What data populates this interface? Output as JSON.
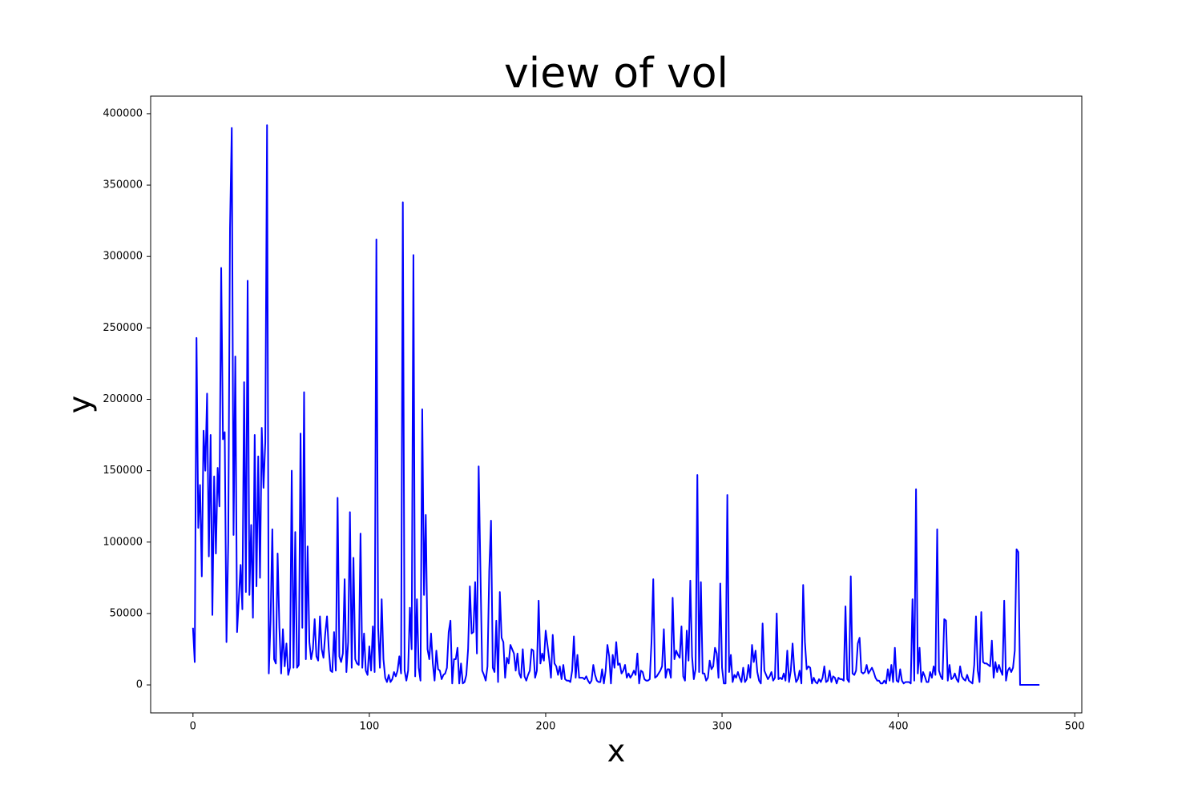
{
  "chart_data": {
    "type": "line",
    "title": "view of vol",
    "x_label": "x",
    "y_label": "y",
    "color": "#0000ff",
    "x": [
      0,
      1,
      2,
      3,
      4,
      5,
      6,
      7,
      8,
      9,
      10,
      11,
      12,
      13,
      14,
      15,
      16,
      17,
      18,
      19,
      20,
      21,
      22,
      23,
      24,
      25,
      26,
      27,
      28,
      29,
      30,
      31,
      32,
      33,
      34,
      35,
      36,
      37,
      38,
      39,
      40,
      41,
      42,
      43,
      44,
      45,
      46,
      47,
      48,
      49,
      50,
      51,
      52,
      53,
      54,
      55,
      56,
      57,
      58,
      59,
      60,
      61,
      62,
      63,
      64,
      65,
      66,
      67,
      68,
      69,
      70,
      71,
      72,
      73,
      74,
      75,
      76,
      77,
      78,
      79,
      80,
      81,
      82,
      83,
      84,
      85,
      86,
      87,
      88,
      89,
      90,
      91,
      92,
      93,
      94,
      95,
      96,
      97,
      98,
      99,
      100,
      101,
      102,
      103,
      104,
      105,
      106,
      107,
      108,
      109,
      110,
      111,
      112,
      113,
      114,
      115,
      116,
      117,
      118,
      119,
      120,
      121,
      122,
      123,
      124,
      125,
      126,
      127,
      128,
      129,
      130,
      131,
      132,
      133,
      134,
      135,
      136,
      137,
      138,
      139,
      140,
      141,
      142,
      143,
      144,
      145,
      146,
      147,
      148,
      149,
      150,
      151,
      152,
      153,
      154,
      155,
      156,
      157,
      158,
      159,
      160,
      161,
      162,
      163,
      164,
      165,
      166,
      167,
      168,
      169,
      170,
      171,
      172,
      173,
      174,
      175,
      176,
      177,
      178,
      179,
      180,
      181,
      182,
      183,
      184,
      185,
      186,
      187,
      188,
      189,
      190,
      191,
      192,
      193,
      194,
      195,
      196,
      197,
      198,
      199,
      200,
      201,
      202,
      203,
      204,
      205,
      206,
      207,
      208,
      209,
      210,
      211,
      212,
      213,
      214,
      215,
      216,
      217,
      218,
      219,
      220,
      221,
      222,
      223,
      224,
      225,
      226,
      227,
      228,
      229,
      230,
      231,
      232,
      233,
      234,
      235,
      236,
      237,
      238,
      239,
      240,
      241,
      242,
      243,
      244,
      245,
      246,
      247,
      248,
      249,
      250,
      251,
      252,
      253,
      254,
      255,
      256,
      257,
      258,
      259,
      260,
      261,
      262,
      263,
      264,
      265,
      266,
      267,
      268,
      269,
      270,
      271,
      272,
      273,
      274,
      275,
      276,
      277,
      278,
      279,
      280,
      281,
      282,
      283,
      284,
      285,
      286,
      287,
      288,
      289,
      290,
      291,
      292,
      293,
      294,
      295,
      296,
      297,
      298,
      299,
      300,
      301,
      302,
      303,
      304,
      305,
      306,
      307,
      308,
      309,
      310,
      311,
      312,
      313,
      314,
      315,
      316,
      317,
      318,
      319,
      320,
      321,
      322,
      323,
      324,
      325,
      326,
      327,
      328,
      329,
      330,
      331,
      332,
      333,
      334,
      335,
      336,
      337,
      338,
      339,
      340,
      341,
      342,
      343,
      344,
      345,
      346,
      347,
      348,
      349,
      350,
      351,
      352,
      353,
      354,
      355,
      356,
      357,
      358,
      359,
      360,
      361,
      362,
      363,
      364,
      365,
      366,
      367,
      368,
      369,
      370,
      371,
      372,
      373,
      374,
      375,
      376,
      377,
      378,
      379,
      380,
      381,
      382,
      383,
      384,
      385,
      386,
      387,
      388,
      389,
      390,
      391,
      392,
      393,
      394,
      395,
      396,
      397,
      398,
      399,
      400,
      401,
      402,
      403,
      404,
      405,
      406,
      407,
      408,
      409,
      410,
      411,
      412,
      413,
      414,
      415,
      416,
      417,
      418,
      419,
      420,
      421,
      422,
      423,
      424,
      425,
      426,
      427,
      428,
      429,
      430,
      431,
      432,
      433,
      434,
      435,
      436,
      437,
      438,
      439,
      440,
      441,
      442,
      443,
      444,
      445,
      446,
      447,
      448,
      449,
      450,
      451,
      452,
      453,
      454,
      455,
      456,
      457,
      458,
      459,
      460,
      461,
      462,
      463,
      464,
      465,
      466,
      467,
      468,
      469,
      470,
      471,
      472,
      473,
      474,
      475,
      476,
      477,
      478,
      479,
      480
    ],
    "values": [
      40000,
      16000,
      243000,
      110000,
      140000,
      76000,
      178000,
      150000,
      204000,
      90000,
      175000,
      49000,
      146000,
      92000,
      152000,
      125000,
      292000,
      172000,
      177000,
      30000,
      100000,
      320000,
      390000,
      105000,
      230000,
      37000,
      60000,
      84000,
      53000,
      212000,
      65000,
      283000,
      63000,
      112000,
      47000,
      175000,
      69000,
      160000,
      75000,
      180000,
      138000,
      170000,
      392000,
      8000,
      45000,
      109000,
      18000,
      15000,
      92000,
      40000,
      8000,
      39000,
      13000,
      29000,
      7000,
      12000,
      150000,
      12000,
      107000,
      12000,
      14000,
      176000,
      40000,
      205000,
      18000,
      97000,
      30000,
      18000,
      25000,
      46000,
      20000,
      17000,
      48000,
      25000,
      19000,
      36000,
      48000,
      25000,
      10000,
      9000,
      37000,
      10000,
      131000,
      20000,
      16000,
      22000,
      74000,
      9000,
      30000,
      121000,
      12000,
      89000,
      18000,
      15000,
      14000,
      106000,
      12000,
      36000,
      10000,
      7000,
      27000,
      10000,
      41000,
      9000,
      312000,
      40000,
      12000,
      60000,
      18000,
      5000,
      2000,
      7000,
      2000,
      4000,
      9000,
      6000,
      10000,
      20000,
      8000,
      338000,
      10000,
      3000,
      10000,
      54000,
      25000,
      301000,
      6000,
      60000,
      12000,
      3000,
      193000,
      63000,
      119000,
      25000,
      18000,
      36000,
      15000,
      3000,
      24000,
      11000,
      10000,
      4000,
      7000,
      8000,
      12000,
      37000,
      45000,
      1000,
      18000,
      18000,
      26000,
      1000,
      15000,
      1000,
      2000,
      7000,
      25000,
      69000,
      36000,
      37000,
      72000,
      22000,
      153000,
      80000,
      10000,
      7000,
      3000,
      13000,
      80000,
      115000,
      12000,
      9000,
      45000,
      2000,
      65000,
      33000,
      30000,
      5000,
      19000,
      15000,
      28000,
      25000,
      22000,
      10000,
      22000,
      8000,
      5000,
      25000,
      6000,
      3000,
      7000,
      10000,
      25000,
      24000,
      5000,
      10000,
      59000,
      15000,
      22000,
      17000,
      38000,
      28000,
      18000,
      5000,
      35000,
      15000,
      13000,
      7000,
      13000,
      4000,
      14000,
      4000,
      3000,
      3000,
      2000,
      10000,
      34000,
      5000,
      21000,
      5000,
      5000,
      5000,
      4000,
      6000,
      3000,
      1000,
      3000,
      14000,
      7000,
      3000,
      2000,
      2000,
      11000,
      1000,
      10000,
      28000,
      20000,
      1000,
      21000,
      12000,
      30000,
      14000,
      15000,
      8000,
      10000,
      14000,
      5000,
      8000,
      5000,
      7000,
      10000,
      7000,
      22000,
      1000,
      10000,
      9000,
      4000,
      3000,
      3000,
      4000,
      30000,
      74000,
      5000,
      6000,
      8000,
      10000,
      13000,
      39000,
      5000,
      11000,
      11000,
      5000,
      61000,
      18000,
      24000,
      21000,
      19000,
      41000,
      6000,
      3000,
      38000,
      17000,
      73000,
      20000,
      4000,
      11000,
      147000,
      9000,
      72000,
      8000,
      8000,
      3000,
      5000,
      17000,
      11000,
      13000,
      26000,
      22000,
      5000,
      71000,
      12000,
      1000,
      1000,
      133000,
      9000,
      21000,
      2000,
      7000,
      5000,
      9000,
      5000,
      2000,
      12000,
      2000,
      4000,
      14000,
      5000,
      28000,
      16000,
      24000,
      9000,
      3000,
      1000,
      43000,
      10000,
      7000,
      4000,
      6000,
      9000,
      3000,
      5000,
      50000,
      4000,
      5000,
      4000,
      8000,
      3000,
      24000,
      2000,
      10000,
      29000,
      10000,
      2000,
      4000,
      10000,
      1000,
      70000,
      30000,
      11000,
      13000,
      12000,
      1000,
      5000,
      2000,
      1000,
      4000,
      2000,
      5000,
      13000,
      2000,
      3000,
      10000,
      2000,
      6000,
      5000,
      1000,
      5000,
      4000,
      4000,
      3000,
      55000,
      4000,
      2000,
      76000,
      8000,
      7000,
      10000,
      29000,
      33000,
      9000,
      8000,
      9000,
      14000,
      8000,
      10000,
      12000,
      9000,
      5000,
      3000,
      3000,
      1000,
      1000,
      3000,
      1000,
      11000,
      3000,
      14000,
      2000,
      26000,
      3000,
      2000,
      11000,
      3000,
      1000,
      2000,
      2000,
      2000,
      1000,
      60000,
      3000,
      137000,
      8000,
      26000,
      2000,
      9000,
      6000,
      2000,
      2000,
      9000,
      5000,
      13000,
      7000,
      109000,
      10000,
      6000,
      4000,
      46000,
      45000,
      3000,
      14000,
      4000,
      5000,
      8000,
      4000,
      2000,
      13000,
      6000,
      4000,
      3000,
      7000,
      3000,
      2000,
      1000,
      14000,
      48000,
      10000,
      2000,
      51000,
      16000,
      15000,
      15000,
      14000,
      13000,
      31000,
      5000,
      16000,
      9000,
      14000,
      10000,
      7000,
      59000,
      3000,
      10000,
      12000,
      9000,
      12000,
      24000,
      95000,
      93000,
      0,
      0,
      0,
      0,
      0,
      0,
      0,
      0,
      0,
      0,
      0,
      0
    ],
    "xlim": [
      -24,
      504
    ],
    "ylim": [
      -19600,
      412300
    ],
    "xticks": [
      0,
      100,
      200,
      300,
      400,
      500
    ],
    "yticks": [
      0,
      50000,
      100000,
      150000,
      200000,
      250000,
      300000,
      350000,
      400000
    ],
    "grid": false
  }
}
